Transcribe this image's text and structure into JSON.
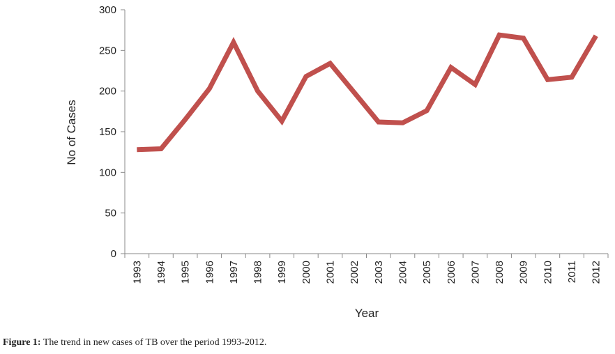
{
  "chart_data": {
    "type": "line",
    "categories": [
      "1993",
      "1994",
      "1995",
      "1996",
      "1997",
      "1998",
      "1999",
      "2000",
      "2001",
      "2002",
      "2003",
      "2004",
      "2005",
      "2006",
      "2007",
      "2008",
      "2009",
      "2010",
      "2011",
      "2012"
    ],
    "series": [
      {
        "values": [
          128,
          129,
          165,
          203,
          260,
          200,
          163,
          218,
          234,
          198,
          162,
          161,
          176,
          229,
          208,
          269,
          265,
          214,
          217,
          268
        ]
      }
    ],
    "xlabel": "Year",
    "ylabel": "No of Cases",
    "ylim": [
      0,
      300
    ],
    "yticks": [
      0,
      50,
      100,
      150,
      200,
      250,
      300
    ],
    "grid": false,
    "line_color": "#c0504d"
  },
  "caption": {
    "label": "Figure 1:",
    "text": " The trend in new cases of TB over the period 1993-2012."
  }
}
